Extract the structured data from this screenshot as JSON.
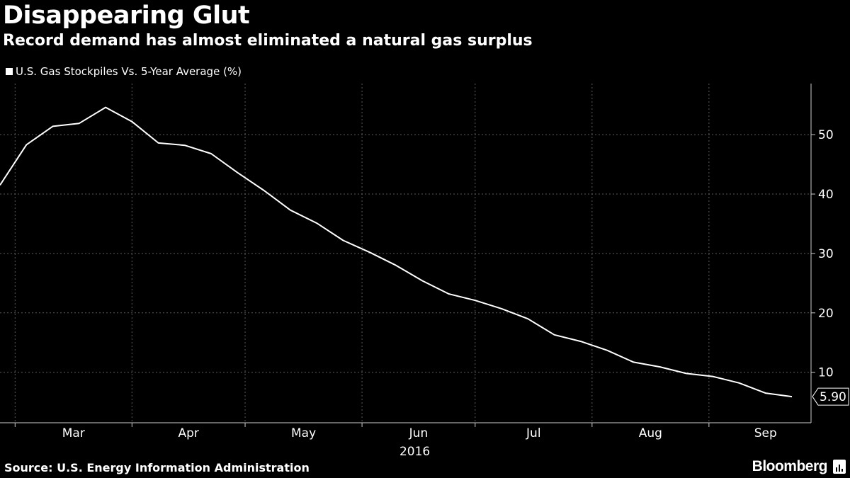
{
  "header": {
    "title": "Disappearing Glut",
    "subtitle": "Record demand has almost eliminated a natural gas surplus"
  },
  "legend": {
    "label": "U.S. Gas Stockpiles Vs. 5-Year Average (%)"
  },
  "footer": {
    "source": "Source: U.S. Energy Information Administration",
    "brand": "Bloomberg",
    "brand_icon": "bloomberg-chart-icon"
  },
  "colors": {
    "background": "#000000",
    "line": "#ffffff",
    "grid": "#5a5a5a"
  },
  "chart_data": {
    "type": "line",
    "title": "Disappearing Glut",
    "subtitle": "Record demand has almost eliminated a natural gas surplus",
    "year_label": "2016",
    "xlabel": "",
    "ylabel": "",
    "x": [
      "2016-02-26",
      "2016-03-04",
      "2016-03-11",
      "2016-03-18",
      "2016-03-25",
      "2016-04-01",
      "2016-04-08",
      "2016-04-15",
      "2016-04-22",
      "2016-04-29",
      "2016-05-06",
      "2016-05-13",
      "2016-05-20",
      "2016-05-27",
      "2016-06-03",
      "2016-06-10",
      "2016-06-17",
      "2016-06-24",
      "2016-07-01",
      "2016-07-08",
      "2016-07-15",
      "2016-07-22",
      "2016-07-29",
      "2016-08-05",
      "2016-08-12",
      "2016-08-19",
      "2016-08-26",
      "2016-09-02",
      "2016-09-09",
      "2016-09-16",
      "2016-09-23"
    ],
    "series": [
      {
        "name": "U.S. Gas Stockpiles Vs. 5-Year Average (%)",
        "values": [
          41.5,
          48.3,
          51.4,
          51.9,
          54.6,
          52.2,
          48.6,
          48.2,
          46.8,
          43.6,
          40.6,
          37.3,
          35.1,
          32.2,
          30.2,
          28.0,
          25.4,
          23.2,
          22.1,
          20.7,
          19.0,
          16.3,
          15.2,
          13.7,
          11.7,
          10.9,
          9.8,
          9.3,
          8.2,
          6.5,
          5.9
        ]
      }
    ],
    "x_ticks": [
      "Mar",
      "Apr",
      "May",
      "Jun",
      "Jul",
      "Aug",
      "Sep"
    ],
    "y_ticks": [
      10,
      20,
      30,
      40,
      50
    ],
    "ylim": [
      1.5,
      58.6
    ],
    "last_value_label": "5.90",
    "y_axis_side": "right",
    "grid": true
  }
}
